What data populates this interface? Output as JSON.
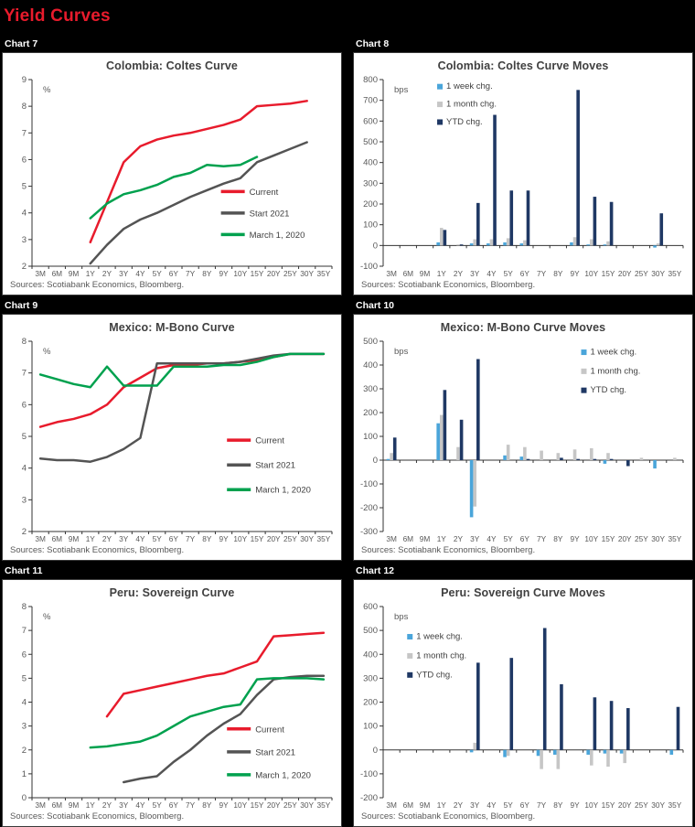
{
  "page": {
    "title": "Yield Curves"
  },
  "colors": {
    "red": "#e81b2c",
    "dark_gray": "#545454",
    "green": "#00a14e",
    "light_blue": "#4aa5da",
    "bar_gray": "#c6c6c6",
    "navy": "#1f3864",
    "axis": "#333333",
    "tick_text": "#595959",
    "legend_text": "#404040",
    "title_red": "#e81b2c"
  },
  "chart_data": [
    {
      "label": "Chart 7",
      "title": "Colombia: Coltes Curve",
      "type": "line",
      "unit": "%",
      "ylim": [
        2,
        9
      ],
      "ytick": 1,
      "categories": [
        "3M",
        "6M",
        "9M",
        "1Y",
        "2Y",
        "3Y",
        "4Y",
        "5Y",
        "6Y",
        "7Y",
        "8Y",
        "9Y",
        "10Y",
        "15Y",
        "20Y",
        "25Y",
        "30Y",
        "35Y"
      ],
      "series": [
        {
          "name": "Current",
          "color": "red",
          "values": [
            null,
            null,
            null,
            2.9,
            4.4,
            5.9,
            6.5,
            6.75,
            6.9,
            7.0,
            7.15,
            7.3,
            7.5,
            8.0,
            8.05,
            8.1,
            8.2,
            null
          ]
        },
        {
          "name": "Start 2021",
          "color": "dark_gray",
          "values": [
            null,
            null,
            null,
            2.1,
            2.8,
            3.4,
            3.75,
            4.0,
            4.3,
            4.6,
            4.85,
            5.1,
            5.3,
            5.9,
            6.15,
            6.4,
            6.65,
            null
          ]
        },
        {
          "name": "March 1, 2020",
          "color": "green",
          "values": [
            null,
            null,
            null,
            3.8,
            4.35,
            4.7,
            4.85,
            5.05,
            5.35,
            5.5,
            5.8,
            5.75,
            5.8,
            6.1,
            null,
            null,
            null,
            null
          ]
        }
      ],
      "legend": {
        "x": 0.63,
        "y": 0.6,
        "dy": 0.115
      },
      "source": "Sources: Scotiabank Economics, Bloomberg."
    },
    {
      "label": "Chart 8",
      "title": "Colombia: Coltes Curve Moves",
      "type": "bar",
      "unit": "bps",
      "ylim": [
        -100,
        800
      ],
      "ytick": 100,
      "categories": [
        "3M",
        "6M",
        "9M",
        "1Y",
        "2Y",
        "3Y",
        "4Y",
        "5Y",
        "6Y",
        "7Y",
        "8Y",
        "9Y",
        "10Y",
        "15Y",
        "20Y",
        "25Y",
        "30Y",
        "35Y"
      ],
      "series": [
        {
          "name": "1 week chg.",
          "color": "light_blue",
          "values": [
            0,
            0,
            0,
            15,
            0,
            10,
            10,
            15,
            10,
            0,
            0,
            15,
            5,
            5,
            0,
            0,
            -10,
            0
          ]
        },
        {
          "name": "1 month chg.",
          "color": "bar_gray",
          "values": [
            0,
            0,
            0,
            85,
            5,
            30,
            30,
            35,
            25,
            0,
            0,
            40,
            30,
            20,
            0,
            0,
            10,
            0
          ]
        },
        {
          "name": "YTD chg.",
          "color": "navy",
          "values": [
            0,
            0,
            0,
            75,
            5,
            205,
            630,
            265,
            265,
            0,
            0,
            750,
            235,
            210,
            0,
            0,
            155,
            0
          ]
        }
      ],
      "legend": {
        "x": 0.18,
        "y": 0.05,
        "dy": 0.095
      },
      "source": "Sources: Scotiabank Economics, Bloomberg."
    },
    {
      "label": "Chart 9",
      "title": "Mexico: M-Bono Curve",
      "type": "line",
      "unit": "%",
      "ylim": [
        2,
        8
      ],
      "ytick": 1,
      "categories": [
        "3M",
        "6M",
        "9M",
        "1Y",
        "2Y",
        "3Y",
        "4Y",
        "5Y",
        "6Y",
        "7Y",
        "8Y",
        "9Y",
        "10Y",
        "15Y",
        "20Y",
        "25Y",
        "30Y",
        "35Y"
      ],
      "series": [
        {
          "name": "Current",
          "color": "red",
          "values": [
            5.3,
            5.45,
            5.55,
            5.7,
            6.0,
            6.55,
            6.85,
            7.15,
            7.25,
            7.25,
            7.3,
            7.3,
            7.35,
            7.4,
            7.5,
            7.6,
            7.6,
            7.6
          ]
        },
        {
          "name": "Start 2021",
          "color": "dark_gray",
          "values": [
            4.3,
            4.25,
            4.25,
            4.2,
            4.35,
            4.6,
            4.95,
            7.3,
            7.3,
            7.3,
            7.3,
            7.3,
            7.35,
            7.45,
            7.55,
            7.6,
            7.6,
            7.6
          ]
        },
        {
          "name": "March 1, 2020",
          "color": "green",
          "values": [
            6.95,
            6.8,
            6.65,
            6.55,
            7.2,
            6.6,
            6.6,
            6.6,
            7.2,
            7.2,
            7.2,
            7.25,
            7.25,
            7.35,
            7.5,
            7.6,
            7.6,
            7.6
          ]
        }
      ],
      "legend": {
        "x": 0.65,
        "y": 0.52,
        "dy": 0.13
      },
      "source": "Sources: Scotiabank Economics, Bloomberg."
    },
    {
      "label": "Chart 10",
      "title": "Mexico: M-Bono Curve Moves",
      "type": "bar",
      "unit": "bps",
      "ylim": [
        -300,
        500
      ],
      "ytick": 100,
      "categories": [
        "3M",
        "6M",
        "9M",
        "1Y",
        "2Y",
        "3Y",
        "4Y",
        "5Y",
        "6Y",
        "7Y",
        "8Y",
        "9Y",
        "10Y",
        "15Y",
        "20Y",
        "25Y",
        "30Y",
        "35Y"
      ],
      "series": [
        {
          "name": "1 week chg.",
          "color": "light_blue",
          "values": [
            5,
            0,
            0,
            155,
            0,
            -240,
            0,
            20,
            15,
            0,
            0,
            0,
            0,
            -15,
            0,
            0,
            -35,
            0
          ]
        },
        {
          "name": "1 month chg.",
          "color": "bar_gray",
          "values": [
            30,
            0,
            0,
            190,
            55,
            -195,
            0,
            65,
            55,
            40,
            30,
            45,
            50,
            30,
            0,
            10,
            0,
            10
          ]
        },
        {
          "name": "YTD chg.",
          "color": "navy",
          "values": [
            95,
            0,
            0,
            295,
            170,
            425,
            0,
            0,
            5,
            0,
            10,
            5,
            5,
            5,
            -25,
            0,
            0,
            0
          ]
        }
      ],
      "legend": {
        "x": 0.66,
        "y": 0.07,
        "dy": 0.1
      },
      "source": "Sources: Scotiabank Economics, Bloomberg."
    },
    {
      "label": "Chart 11",
      "title": "Peru: Sovereign Curve",
      "type": "line",
      "unit": "%",
      "ylim": [
        0,
        8
      ],
      "ytick": 1,
      "categories": [
        "3M",
        "6M",
        "9M",
        "1Y",
        "2Y",
        "3Y",
        "4Y",
        "5Y",
        "6Y",
        "7Y",
        "8Y",
        "9Y",
        "10Y",
        "15Y",
        "20Y",
        "25Y",
        "30Y",
        "35Y"
      ],
      "series": [
        {
          "name": "Current",
          "color": "red",
          "values": [
            null,
            null,
            null,
            null,
            3.4,
            4.35,
            4.5,
            4.65,
            4.8,
            4.95,
            5.1,
            5.2,
            5.45,
            5.7,
            6.75,
            6.8,
            6.85,
            6.9
          ]
        },
        {
          "name": "Start 2021",
          "color": "dark_gray",
          "values": [
            null,
            null,
            null,
            null,
            null,
            0.65,
            0.8,
            0.9,
            1.5,
            2.0,
            2.6,
            3.1,
            3.5,
            4.3,
            4.95,
            5.05,
            5.1,
            5.1
          ]
        },
        {
          "name": "March 1, 2020",
          "color": "green",
          "values": [
            null,
            null,
            null,
            2.1,
            2.15,
            2.25,
            2.35,
            2.6,
            3.0,
            3.4,
            3.6,
            3.8,
            3.9,
            4.95,
            5.0,
            5.0,
            5.0,
            4.95
          ]
        }
      ],
      "legend": {
        "x": 0.65,
        "y": 0.64,
        "dy": 0.12
      },
      "source": "Sources: Scotiabank Economics, Bloomberg."
    },
    {
      "label": "Chart 12",
      "title": "Peru: Sovereign Curve Moves",
      "type": "bar",
      "unit": "bps",
      "ylim": [
        -200,
        600
      ],
      "ytick": 100,
      "categories": [
        "3M",
        "6M",
        "9M",
        "1Y",
        "2Y",
        "3Y",
        "4Y",
        "5Y",
        "6Y",
        "7Y",
        "8Y",
        "9Y",
        "10Y",
        "15Y",
        "20Y",
        "25Y",
        "30Y",
        "35Y"
      ],
      "series": [
        {
          "name": "1 week chg.",
          "color": "light_blue",
          "values": [
            0,
            0,
            0,
            0,
            0,
            -10,
            0,
            -30,
            0,
            -25,
            -20,
            0,
            -20,
            -15,
            -15,
            0,
            0,
            -20
          ]
        },
        {
          "name": "1 month chg.",
          "color": "bar_gray",
          "values": [
            0,
            0,
            0,
            0,
            0,
            30,
            0,
            -25,
            0,
            -80,
            -80,
            0,
            -65,
            -70,
            -55,
            0,
            0,
            -5
          ]
        },
        {
          "name": "YTD chg.",
          "color": "navy",
          "values": [
            0,
            0,
            0,
            0,
            0,
            365,
            0,
            385,
            0,
            510,
            275,
            0,
            220,
            205,
            175,
            0,
            0,
            180
          ]
        }
      ],
      "legend": {
        "x": 0.08,
        "y": 0.17,
        "dy": 0.1
      },
      "source": "Sources: Scotiabank Economics, Bloomberg."
    }
  ]
}
